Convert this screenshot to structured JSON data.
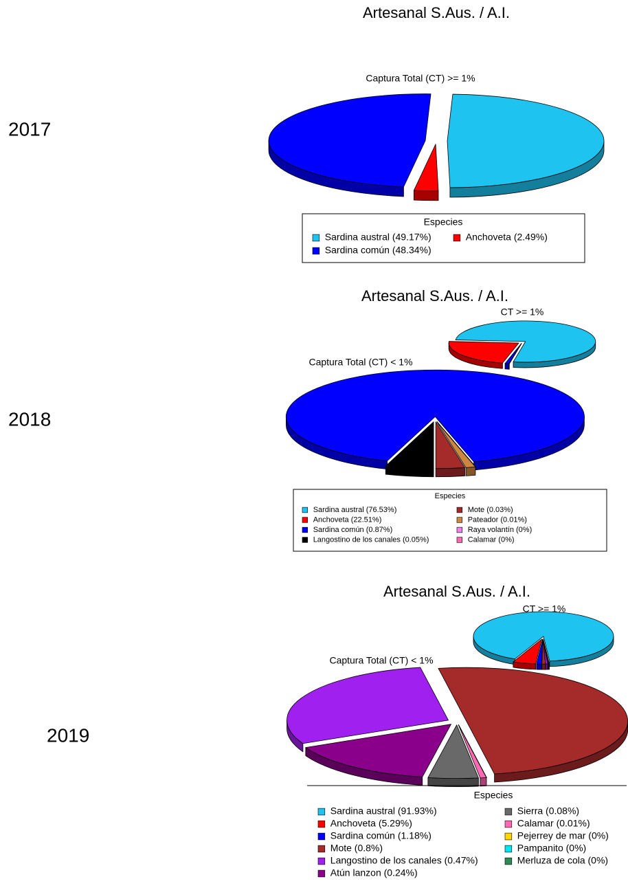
{
  "chart_data": [
    {
      "type": "pie",
      "year": "2017",
      "title": "Artesanal S.Aus. / A.I.",
      "pie_title": "Captura Total (CT) >= 1%",
      "legend_title": "Especies",
      "categories": [
        "Sardina austral (49.17%)",
        "Anchoveta (2.49%)",
        "Sardina común (48.34%)"
      ],
      "values": [
        49.17,
        2.49,
        48.34
      ],
      "colors": [
        "#1ec3f0",
        "#ff0000",
        "#0000ff"
      ]
    },
    {
      "type": "pie",
      "year": "2018",
      "title": "Artesanal S.Aus. / A.I.",
      "pie_title": "CT >= 1%",
      "detail_title": "Captura Total (CT) < 1%",
      "legend_title": "Especies",
      "categories": [
        "Sardina austral (76.53%)",
        "Anchoveta (22.51%)",
        "Sardina común (0.87%)",
        "Langostino de los canales (0.05%)",
        "Mote (0.03%)",
        "Pateador (0.01%)",
        "Raya volantín (0%)",
        "Calamar (0%)"
      ],
      "values": [
        76.53,
        22.51,
        0.87,
        0.05,
        0.03,
        0.01,
        0,
        0
      ],
      "colors": [
        "#1ec3f0",
        "#ff0000",
        "#0000ff",
        "#000000",
        "#a52a2a",
        "#cd853f",
        "#ee82ee",
        "#ff69b4"
      ]
    },
    {
      "type": "pie",
      "year": "2019",
      "title": "Artesanal S.Aus. / A.I.",
      "pie_title": "CT >= 1%",
      "detail_title": "Captura Total (CT) < 1%",
      "legend_title": "Especies",
      "categories": [
        "Sardina austral (91.93%)",
        "Anchoveta (5.29%)",
        "Sardina común (1.18%)",
        "Mote (0.8%)",
        "Langostino de los canales (0.47%)",
        "Atún lanzon (0.24%)",
        "Sierra (0.08%)",
        "Calamar (0.01%)",
        "Pejerrey de mar (0%)",
        "Pampanito (0%)",
        "Merluza de cola (0%)"
      ],
      "values": [
        91.93,
        5.29,
        1.18,
        0.8,
        0.47,
        0.24,
        0.08,
        0.01,
        0,
        0,
        0
      ],
      "colors": [
        "#1ec3f0",
        "#ff0000",
        "#0000ff",
        "#a52a2a",
        "#a020f0",
        "#8b008b",
        "#696969",
        "#ff69b4",
        "#ffd700",
        "#00e5ee",
        "#2e8b57"
      ]
    }
  ]
}
